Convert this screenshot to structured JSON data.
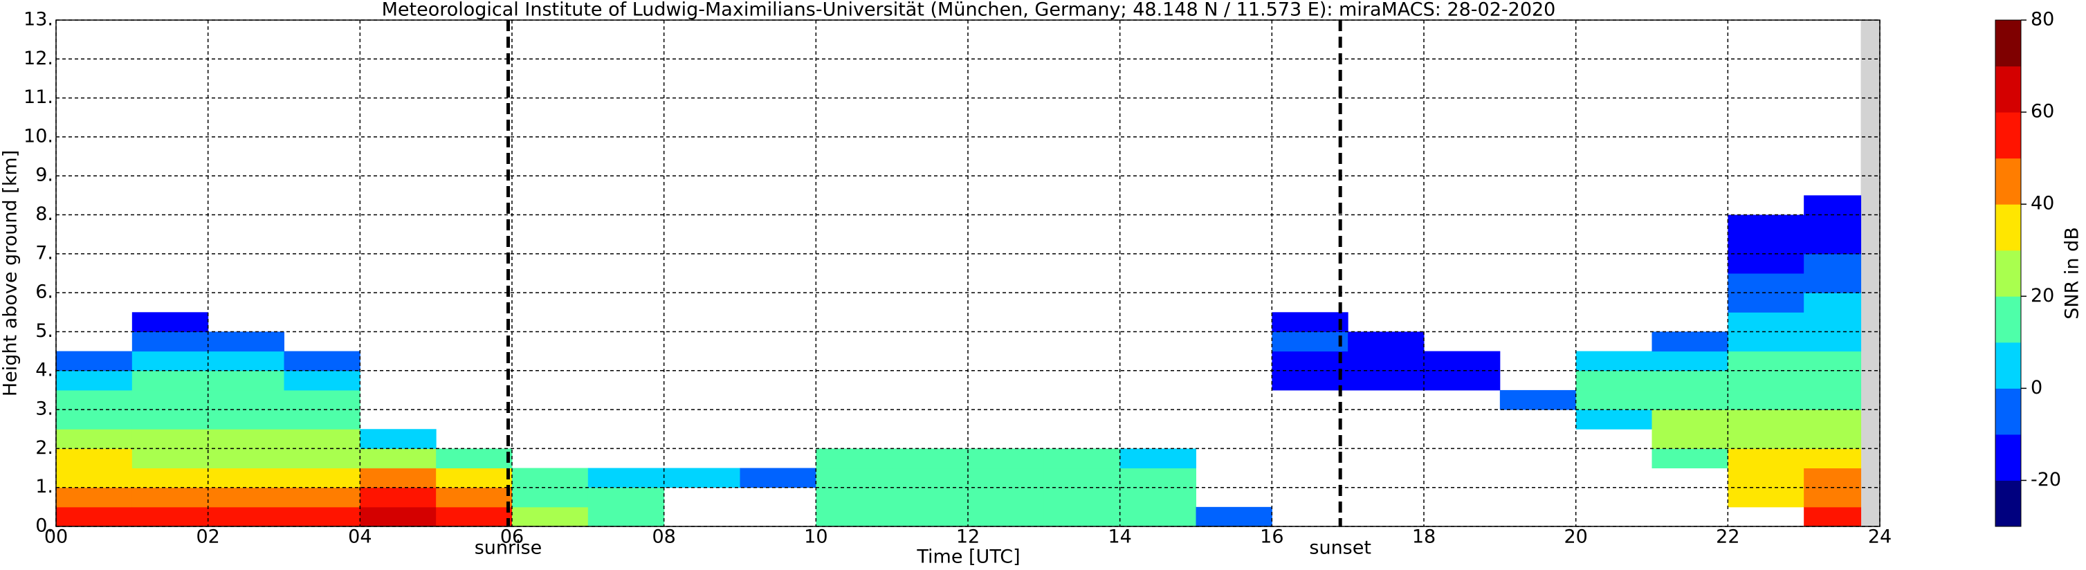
{
  "chart_data": {
    "type": "heatmap",
    "title": "Meteorological Institute of Ludwig-Maximilians-Universität (München, Germany; 48.148 N / 11.573 E):    miraMACS: 28-02-2020",
    "x_label": "Time [UTC]",
    "y_label": "Height above ground [km]",
    "colorbar_label": "SNR in dB",
    "xlim": [
      0,
      24
    ],
    "ylim": [
      0,
      13
    ],
    "clim": [
      -30,
      80
    ],
    "xticks": [
      {
        "value": 0,
        "label": "00"
      },
      {
        "value": 2,
        "label": "02"
      },
      {
        "value": 4,
        "label": "04"
      },
      {
        "value": 6,
        "label": "06"
      },
      {
        "value": 8,
        "label": "08"
      },
      {
        "value": 10,
        "label": "10"
      },
      {
        "value": 12,
        "label": "12"
      },
      {
        "value": 14,
        "label": "14"
      },
      {
        "value": 16,
        "label": "16"
      },
      {
        "value": 18,
        "label": "18"
      },
      {
        "value": 20,
        "label": "20"
      },
      {
        "value": 22,
        "label": "22"
      },
      {
        "value": 24,
        "label": "24"
      }
    ],
    "yticks": [
      {
        "value": 0,
        "label": "0."
      },
      {
        "value": 1,
        "label": "1."
      },
      {
        "value": 2,
        "label": "2."
      },
      {
        "value": 3,
        "label": "3."
      },
      {
        "value": 4,
        "label": "4."
      },
      {
        "value": 5,
        "label": "5."
      },
      {
        "value": 6,
        "label": "6."
      },
      {
        "value": 7,
        "label": "7."
      },
      {
        "value": 8,
        "label": "8."
      },
      {
        "value": 9,
        "label": "9."
      },
      {
        "value": 10,
        "label": "10."
      },
      {
        "value": 11,
        "label": "11."
      },
      {
        "value": 12,
        "label": "12."
      },
      {
        "value": 13,
        "label": "13."
      }
    ],
    "cticks": [
      -20,
      0,
      20,
      40,
      60,
      80
    ],
    "grid": true,
    "colormap": [
      "#00007f",
      "#0000ff",
      "#0063ff",
      "#00d4ff",
      "#4effa9",
      "#a9ff4e",
      "#ffe600",
      "#ff7d00",
      "#ff1400",
      "#d40000",
      "#7f0000"
    ],
    "x_edges": [
      0,
      1,
      2,
      3,
      4,
      5,
      6,
      7,
      8,
      9,
      10,
      11,
      12,
      13,
      14,
      15,
      16,
      17,
      18,
      19,
      20,
      21,
      22,
      23,
      23.75
    ],
    "y_edges": [
      0,
      0.5,
      1,
      1.5,
      2,
      2.5,
      3,
      3.5,
      4,
      4.5,
      5,
      5.5,
      6,
      6.5,
      7,
      7.5,
      8,
      8.5,
      9
    ],
    "z": [
      [
        55,
        45,
        35,
        30,
        22,
        15,
        10,
        5,
        -10,
        null,
        null,
        null,
        null,
        null,
        null,
        null,
        null,
        null
      ],
      [
        55,
        45,
        35,
        28,
        22,
        18,
        15,
        10,
        5,
        -5,
        -15,
        null,
        null,
        null,
        null,
        null,
        null,
        null
      ],
      [
        55,
        45,
        35,
        28,
        22,
        18,
        15,
        10,
        5,
        -10,
        null,
        null,
        null,
        null,
        null,
        null,
        null,
        null
      ],
      [
        55,
        45,
        35,
        28,
        20,
        15,
        10,
        5,
        -10,
        null,
        null,
        null,
        null,
        null,
        null,
        null,
        null,
        null
      ],
      [
        60,
        50,
        40,
        25,
        5,
        null,
        null,
        null,
        null,
        null,
        null,
        null,
        null,
        null,
        null,
        null,
        null,
        null
      ],
      [
        55,
        40,
        30,
        15,
        null,
        null,
        null,
        null,
        null,
        null,
        null,
        null,
        null,
        null,
        null,
        null,
        null,
        null
      ],
      [
        20,
        15,
        10,
        null,
        null,
        null,
        null,
        null,
        null,
        null,
        null,
        null,
        null,
        null,
        null,
        null,
        null,
        null
      ],
      [
        15,
        10,
        5,
        null,
        null,
        null,
        null,
        null,
        null,
        null,
        null,
        null,
        null,
        null,
        null,
        null,
        null,
        null
      ],
      [
        null,
        null,
        0,
        null,
        null,
        null,
        null,
        null,
        null,
        null,
        null,
        null,
        null,
        null,
        null,
        null,
        null,
        null
      ],
      [
        null,
        null,
        -5,
        null,
        null,
        null,
        null,
        null,
        null,
        null,
        null,
        null,
        null,
        null,
        null,
        null,
        null,
        null
      ],
      [
        10,
        15,
        15,
        10,
        null,
        null,
        null,
        null,
        null,
        null,
        null,
        null,
        null,
        null,
        null,
        null,
        null,
        null
      ],
      [
        15,
        18,
        18,
        12,
        null,
        null,
        null,
        null,
        null,
        null,
        null,
        null,
        null,
        null,
        null,
        null,
        null,
        null
      ],
      [
        15,
        18,
        18,
        12,
        null,
        null,
        null,
        null,
        null,
        null,
        null,
        null,
        null,
        null,
        null,
        null,
        null,
        null
      ],
      [
        15,
        18,
        15,
        10,
        null,
        null,
        null,
        null,
        null,
        null,
        null,
        null,
        null,
        null,
        null,
        null,
        null,
        null
      ],
      [
        10,
        15,
        12,
        8,
        null,
        null,
        null,
        null,
        null,
        null,
        null,
        null,
        null,
        null,
        null,
        null,
        null,
        null
      ],
      [
        -10,
        null,
        null,
        null,
        null,
        null,
        null,
        null,
        null,
        null,
        null,
        null,
        null,
        null,
        null,
        null,
        null,
        null
      ],
      [
        null,
        null,
        null,
        null,
        null,
        null,
        null,
        -15,
        -15,
        -10,
        -20,
        null,
        null,
        null,
        null,
        null,
        null,
        null
      ],
      [
        null,
        null,
        null,
        null,
        null,
        null,
        null,
        -15,
        -15,
        -15,
        null,
        null,
        null,
        null,
        null,
        null,
        null,
        null
      ],
      [
        null,
        null,
        null,
        null,
        null,
        null,
        null,
        -15,
        -15,
        null,
        null,
        null,
        null,
        null,
        null,
        null,
        null,
        null
      ],
      [
        null,
        null,
        null,
        null,
        null,
        null,
        -10,
        null,
        null,
        null,
        null,
        null,
        null,
        null,
        null,
        null,
        null,
        null
      ],
      [
        null,
        null,
        null,
        null,
        null,
        5,
        15,
        10,
        0,
        null,
        null,
        null,
        null,
        null,
        null,
        null,
        null,
        null
      ],
      [
        null,
        null,
        null,
        10,
        25,
        20,
        18,
        12,
        5,
        -5,
        null,
        null,
        null,
        null,
        null,
        null,
        null,
        null
      ],
      [
        null,
        35,
        35,
        30,
        25,
        20,
        18,
        15,
        10,
        5,
        0,
        -5,
        -10,
        -15,
        -20,
        -20,
        null,
        null
      ],
      [
        55,
        45,
        40,
        35,
        28,
        22,
        18,
        15,
        12,
        8,
        5,
        0,
        -5,
        -10,
        -15,
        -20,
        -20,
        null
      ]
    ],
    "annotations": [
      {
        "x": 5.95,
        "text": "sunrise"
      },
      {
        "x": 16.9,
        "text": "sunset"
      }
    ]
  }
}
